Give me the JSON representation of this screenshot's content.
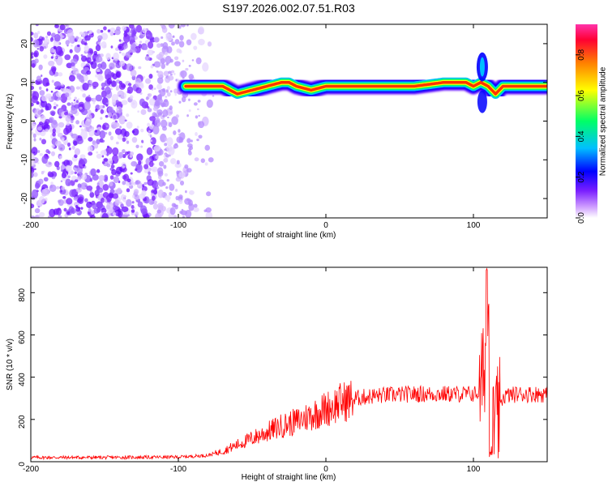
{
  "title": "S197.2026.002.07.51.R03",
  "chart_data": [
    {
      "type": "heatmap",
      "xlabel": "Height of straight line (km)",
      "ylabel": "Frequency (Hz)",
      "xlim": [
        -200,
        150
      ],
      "ylim": [
        -25,
        25
      ],
      "xticks": [
        -200,
        -100,
        0,
        100
      ],
      "yticks": [
        20,
        10,
        0,
        -10,
        -20
      ],
      "colorbar": {
        "label": "Normalized spectral amplitude",
        "range": [
          0,
          0.95
        ],
        "ticks": [
          "0.0",
          "0.2",
          "0.4",
          "0.6",
          "0.8"
        ],
        "tick_values": [
          0,
          0.2,
          0.4,
          0.6,
          0.8
        ],
        "colors": [
          "#ffffff",
          "#cc99ff",
          "#7a1fff",
          "#0000ff",
          "#00bfff",
          "#00ff66",
          "#ffff00",
          "#ff8000",
          "#ff0033",
          "#ff33aa"
        ]
      },
      "ridge": {
        "description_points_x": [
          -95,
          -80,
          -70,
          -60,
          -50,
          -40,
          -30,
          -25,
          -20,
          -10,
          0,
          10,
          20,
          40,
          60,
          80,
          95,
          100,
          105,
          110,
          115,
          120,
          130,
          150
        ],
        "description_points_y": [
          9,
          9,
          9,
          7,
          8,
          9,
          10,
          10,
          9,
          8,
          9,
          9,
          9,
          9,
          9,
          10,
          10,
          9,
          10,
          9,
          7,
          9,
          9,
          9
        ]
      },
      "noise_region_x": [
        -200,
        -75
      ]
    },
    {
      "type": "line",
      "xlabel": "Height of straight line (km)",
      "ylabel": "SNR (10 * v/v)",
      "xlim": [
        -200,
        150
      ],
      "ylim": [
        0,
        920
      ],
      "xticks": [
        -200,
        -100,
        0,
        100
      ],
      "yticks": [
        0,
        200,
        400,
        600,
        800
      ],
      "series": [
        {
          "name": "SNR",
          "color": "#ff0000",
          "envelope_x": [
            -200,
            -150,
            -100,
            -80,
            -70,
            -60,
            -50,
            -40,
            -30,
            -20,
            -10,
            0,
            10,
            20,
            30,
            40,
            60,
            80,
            100,
            105,
            108,
            110,
            112,
            115,
            120,
            130,
            150
          ],
          "envelope_y": [
            20,
            20,
            22,
            30,
            50,
            80,
            110,
            140,
            170,
            190,
            220,
            250,
            280,
            300,
            310,
            315,
            320,
            320,
            320,
            330,
            500,
            900,
            300,
            150,
            310,
            320,
            320
          ]
        }
      ]
    }
  ]
}
